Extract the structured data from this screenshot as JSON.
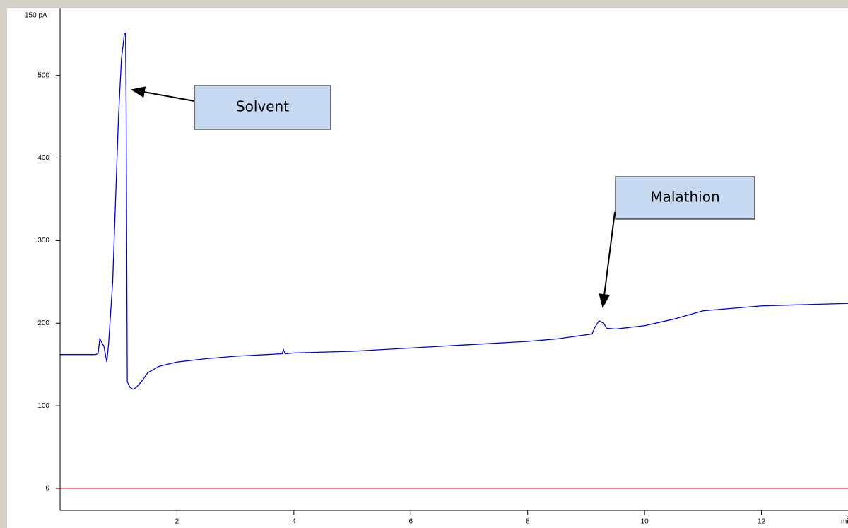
{
  "chart_data": {
    "type": "line",
    "y_label": "150 pA",
    "x_label": "mi",
    "x": [
      0,
      0.6,
      0.65,
      0.68,
      0.75,
      0.8,
      0.83,
      0.9,
      0.95,
      1.0,
      1.05,
      1.1,
      1.12,
      1.13,
      1.15,
      1.2,
      1.25,
      1.3,
      1.4,
      1.5,
      1.7,
      2,
      2.5,
      3,
      3.8,
      3.82,
      3.85,
      4,
      5,
      6,
      7,
      8,
      8.5,
      9.1,
      9.15,
      9.22,
      9.3,
      9.35,
      9.5,
      10,
      10.5,
      11,
      11.5,
      12,
      12.5,
      13,
      13.48
    ],
    "series": [
      {
        "color": "#0000e0",
        "values": [
          162,
          162,
          163,
          181,
          172,
          153,
          175,
          250,
          350,
          450,
          520,
          550,
          551,
          463,
          129,
          122,
          120,
          122,
          130,
          140,
          148,
          153,
          157,
          160,
          163,
          168,
          163,
          164,
          166,
          170,
          174,
          178,
          181,
          187,
          195,
          203,
          200,
          194,
          193,
          197,
          205,
          215,
          218,
          221,
          222,
          223,
          224
        ]
      }
    ],
    "xlim": [
      0,
      13.48
    ],
    "xticks": [
      2,
      4,
      6,
      8,
      10,
      12
    ],
    "ylim": [
      -26.5,
      581
    ],
    "yticks": [
      0,
      100,
      200,
      300,
      400,
      500
    ],
    "zero_line_color": "#e00000",
    "annotations": [
      {
        "text": "Solvent",
        "x": 1.25,
        "y": 480
      },
      {
        "text": "Malathion",
        "x": 9.25,
        "y": 220
      }
    ]
  }
}
